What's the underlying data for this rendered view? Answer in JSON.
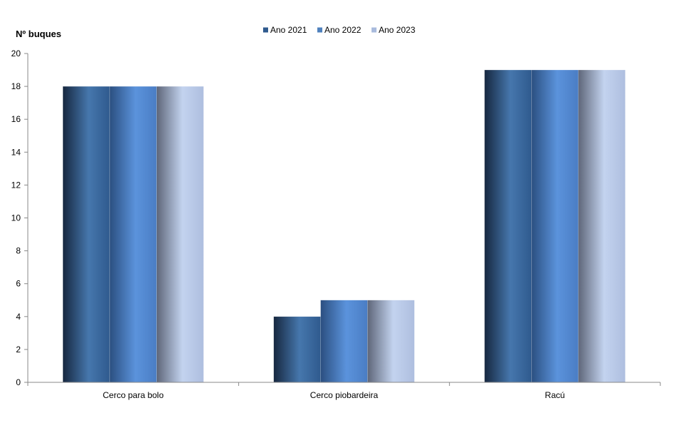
{
  "chart_data": {
    "type": "bar",
    "title": "",
    "xlabel": "",
    "ylabel": "Nº  buques",
    "categories": [
      "Cerco para bolo",
      "Cerco piobardeira",
      "Racú"
    ],
    "series": [
      {
        "name": "Ano 2021",
        "values": [
          18,
          4,
          19
        ],
        "color": "#2f5a8e"
      },
      {
        "name": "Ano 2022",
        "values": [
          18,
          5,
          19
        ],
        "color": "#4f81bd"
      },
      {
        "name": "Ano 2023",
        "values": [
          18,
          5,
          19
        ],
        "color": "#a9bbdd"
      }
    ],
    "ylim": [
      0,
      20
    ],
    "yticks": [
      0,
      2,
      4,
      6,
      8,
      10,
      12,
      14,
      16,
      18,
      20
    ],
    "grid": false,
    "legend": "top-center"
  }
}
